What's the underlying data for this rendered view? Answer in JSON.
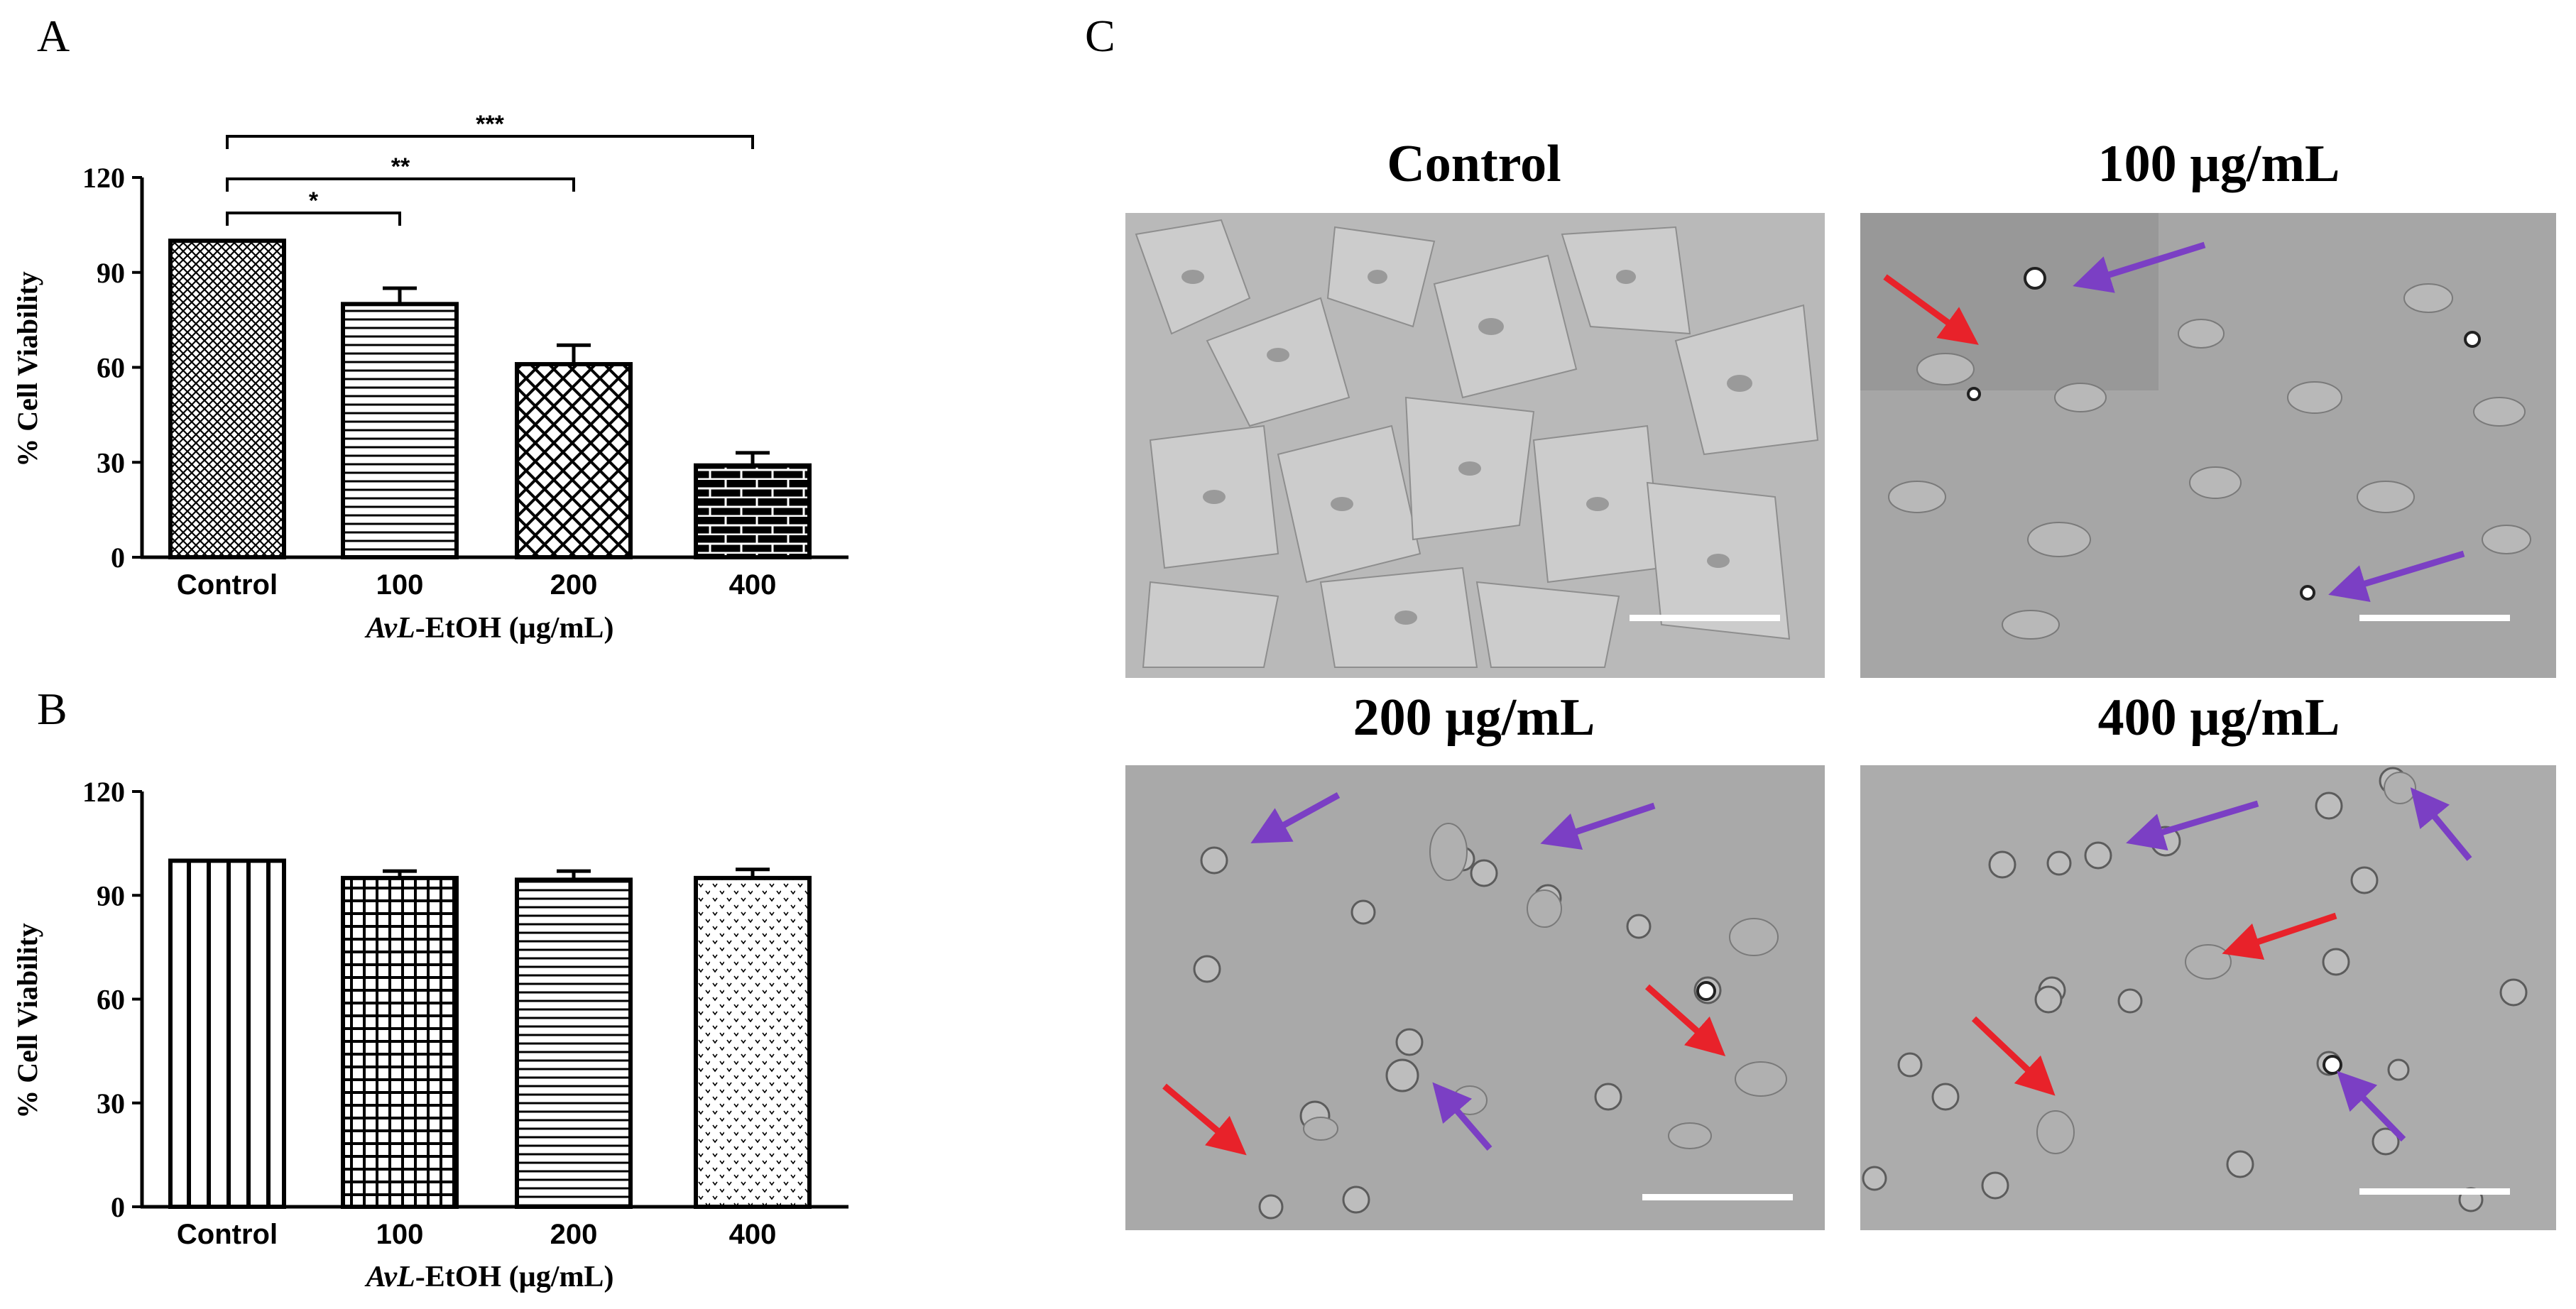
{
  "panel_letters": {
    "a": "A",
    "b": "B",
    "c": "C"
  },
  "chart_data": [
    {
      "type": "bar",
      "panel": "A",
      "categories": [
        "Control",
        "100",
        "200",
        "400"
      ],
      "series": [
        {
          "values": [
            100,
            80,
            61,
            29
          ],
          "errors": [
            0,
            5,
            6,
            4
          ]
        }
      ],
      "ylabel": "% Cell Viability",
      "xlabel": {
        "italic": "AvL",
        "rest": "-EtOH (µg/mL)"
      },
      "ylim": [
        0,
        120
      ],
      "yticks": [
        0,
        30,
        60,
        90,
        120
      ],
      "patterns": [
        "crosshatch",
        "hlines",
        "bigcrosshatch",
        "bricks"
      ],
      "significance": [
        {
          "from": 0,
          "to": 1,
          "label": "*"
        },
        {
          "from": 0,
          "to": 2,
          "label": "**"
        },
        {
          "from": 0,
          "to": 3,
          "label": "***"
        }
      ]
    },
    {
      "type": "bar",
      "panel": "B",
      "categories": [
        "Control",
        "100",
        "200",
        "400"
      ],
      "series": [
        {
          "values": [
            100,
            95,
            94.5,
            95
          ],
          "errors": [
            0,
            2,
            2.5,
            2.5
          ]
        }
      ],
      "ylabel": "% Cell Viability",
      "xlabel": {
        "italic": "AvL",
        "rest": "-EtOH (µg/mL)"
      },
      "ylim": [
        0,
        120
      ],
      "yticks": [
        0,
        30,
        60,
        90,
        120
      ],
      "patterns": [
        "vlines",
        "grid",
        "hlines",
        "dots"
      ]
    }
  ],
  "micrographs": {
    "titles": [
      "Control",
      "100 µg/mL",
      "200 µg/mL",
      "400 µg/mL"
    ],
    "arrow_colors": {
      "red": "#e8222a",
      "purple": "#7b3fc4"
    },
    "scale_bar_color": "#ffffff",
    "image_bg": "#a9a9a9"
  }
}
